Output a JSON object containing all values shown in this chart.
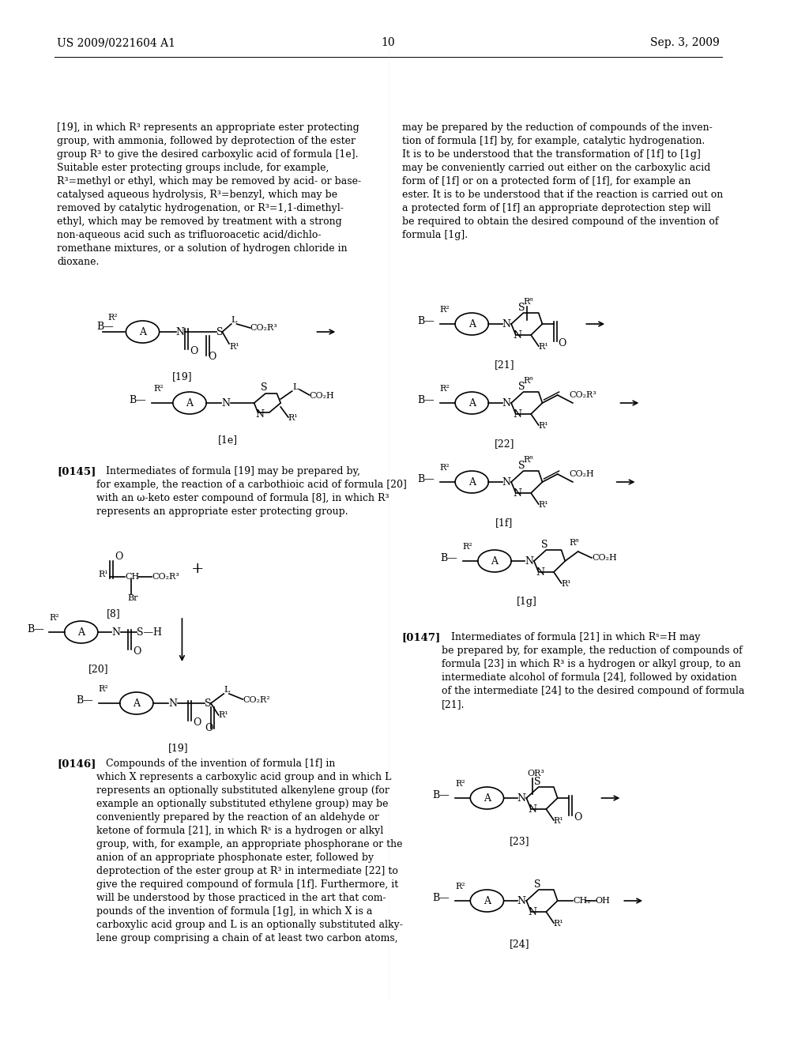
{
  "page_number": "10",
  "header_left": "US 2009/0221604 A1",
  "header_right": "Sep. 3, 2009",
  "background_color": "#ffffff",
  "text_color": "#000000",
  "font_size_body": 9.5,
  "font_size_header": 10,
  "paragraph_0145_bold": "[0145]",
  "paragraph_0145_text": "   Intermediates of formula [19] may be prepared by, for example, the reaction of a carbothioic acid of formula [20] with an ω-keto ester compound of formula [8], in which R³ represents an appropriate ester protecting group.",
  "paragraph_0146_bold": "[0146]",
  "paragraph_0146_text": "   Compounds of the invention of formula [1f] in which X represents a carboxylic acid group and in which L represents an optionally substituted alkenylene group (for example an optionally substituted ethylene group) may be conveniently prepared by the reaction of an aldehyde or ketone of formula [21], in which Rˢ is a hydrogen or alkyl group, with, for example, an appropriate phosphorane or the anion of an appropriate phosphonate ester, followed by deprotection of the ester group at R³ in intermediate [22] to give the required compound of formula [1f]. Furthermore, it will be understood by those practiced in the art that compounds of the invention of formula [1g], in which X is a carboxylic acid group and L is an optionally substituted alkylene group comprising a chain of at least two carbon atoms,",
  "paragraph_0147_bold": "[0147]",
  "paragraph_0147_text": "   Intermediates of formula [21] in which Rˢ=H may be prepared by, for example, the reduction of compounds of formula [23] in which R³ is a hydrogen or alkyl group, to an intermediate alcohol of formula [24], followed by oxidation of the intermediate [24] to the desired compound of formula [21].",
  "right_col_text": "may be prepared by the reduction of compounds of the invention of formula [1f] by, for example, catalytic hydrogenation. It is to be understood that the transformation of [1f] to [1g] may be conveniently carried out either on the carboxylic acid form of [1f] or on a protected form of [1f], for example an ester. It is to be understood that if the reaction is carried out on a protected form of [1f] an appropriate deprotection step will be required to obtain the desired compound of the invention of formula [1g]."
}
